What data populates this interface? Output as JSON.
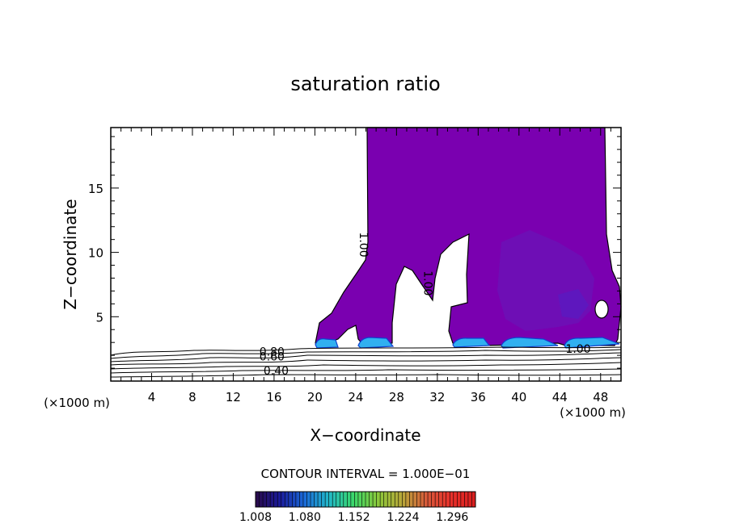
{
  "chart_data": {
    "type": "contour",
    "title": "saturation ratio",
    "xlabel": "X−coordinate",
    "ylabel": "Z−coordinate",
    "x_unit_left": "(×1000 m)",
    "x_unit_right": "(×1000 m)",
    "xlim": [
      0,
      50
    ],
    "ylim": [
      0,
      19.7
    ],
    "x_ticks": [
      4,
      8,
      12,
      16,
      20,
      24,
      28,
      32,
      36,
      40,
      44,
      48
    ],
    "y_ticks": [
      5,
      10,
      15
    ],
    "contour_labels": [
      {
        "text": "0.80",
        "x": 15.8,
        "z": 2.3
      },
      {
        "text": "0.60",
        "x": 15.8,
        "z": 1.9
      },
      {
        "text": "0.40",
        "x": 16.2,
        "z": 0.8
      },
      {
        "text": "1.00",
        "x": 24.8,
        "z": 10.6
      },
      {
        "text": "1.00",
        "x": 31.1,
        "z": 7.6
      },
      {
        "text": "1.00",
        "x": 45.8,
        "z": 2.5
      }
    ],
    "contour_interval_text": "CONTOUR INTERVAL = 1.000E−01",
    "colorbar": {
      "labels": [
        "1.008",
        "1.080",
        "1.152",
        "1.224",
        "1.296"
      ],
      "min": 1.008,
      "max": 1.33,
      "colors": [
        "#2a0a4a",
        "#1a1a9a",
        "#1a6ad8",
        "#22b8c8",
        "#3ad86a",
        "#8ac83a",
        "#b8a83a",
        "#d85a3a",
        "#e8302a",
        "#d81e1e"
      ]
    },
    "fill_color": "#7a00b0",
    "dark_fill_color": "#5a1ac0",
    "ice_color": "#30b0f0"
  }
}
